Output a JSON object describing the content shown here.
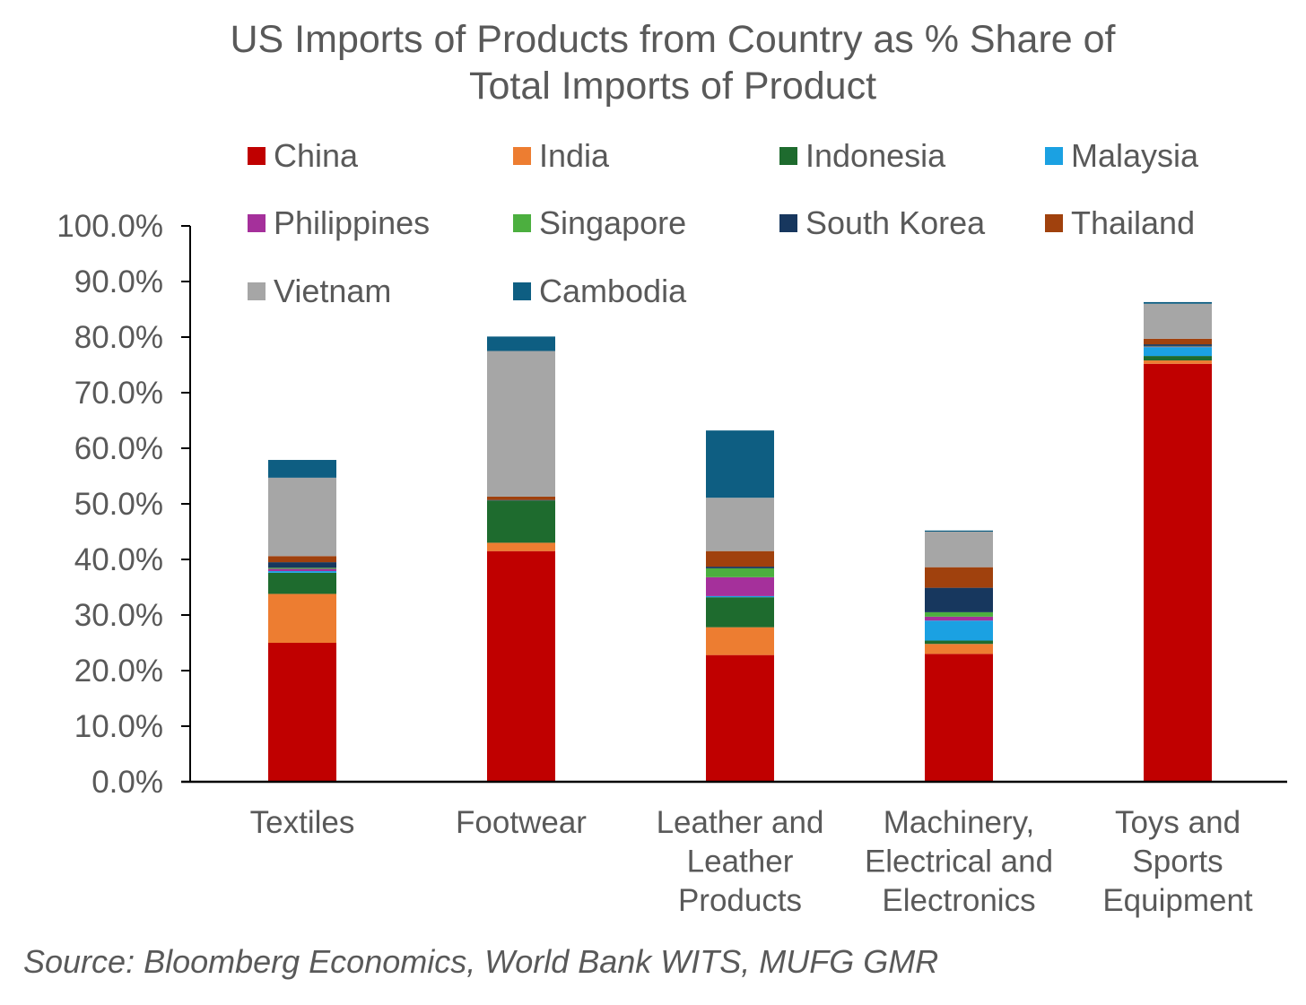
{
  "chart_data": {
    "type": "bar",
    "stacked": true,
    "title": "US Imports of Products from Country as % Share of\nTotal Imports of Product",
    "source": "Source: Bloomberg Economics, World Bank WITS, MUFG GMR",
    "xlabel": "",
    "ylabel": "",
    "ylim": [
      0,
      100
    ],
    "yticks": [
      0,
      10,
      20,
      30,
      40,
      50,
      60,
      70,
      80,
      90,
      100
    ],
    "ytick_labels": [
      "0.0%",
      "10.0%",
      "20.0%",
      "30.0%",
      "40.0%",
      "50.0%",
      "60.0%",
      "70.0%",
      "80.0%",
      "90.0%",
      "100.0%"
    ],
    "grid": false,
    "legend_position": "top",
    "categories": [
      "Textiles",
      "Footwear",
      "Leather and Leather Products",
      "Machinery, Electrical and Electronics",
      "Toys and Sports Equipment"
    ],
    "category_lines": [
      [
        "Textiles"
      ],
      [
        "Footwear"
      ],
      [
        "Leather and",
        "Leather",
        "Products"
      ],
      [
        "Machinery,",
        "Electrical and",
        "Electronics"
      ],
      [
        "Toys and",
        "Sports",
        "Equipment"
      ]
    ],
    "series": [
      {
        "name": "China",
        "color": "#C00000",
        "values": [
          25.0,
          41.5,
          22.8,
          23.0,
          75.2
        ]
      },
      {
        "name": "India",
        "color": "#ED7D31",
        "values": [
          8.8,
          1.5,
          5.0,
          1.8,
          0.6
        ]
      },
      {
        "name": "Indonesia",
        "color": "#1E6B2E",
        "values": [
          3.8,
          7.6,
          5.4,
          0.6,
          0.8
        ]
      },
      {
        "name": "Malaysia",
        "color": "#1BA1E2",
        "values": [
          0.3,
          0.0,
          0.2,
          3.6,
          1.6
        ]
      },
      {
        "name": "Philippines",
        "color": "#A5309B",
        "values": [
          0.4,
          0.0,
          3.4,
          0.7,
          0.1
        ]
      },
      {
        "name": "Singapore",
        "color": "#4CAF3F",
        "values": [
          0.2,
          0.0,
          1.6,
          0.8,
          0.1
        ]
      },
      {
        "name": "South Korea",
        "color": "#17375E",
        "values": [
          1.0,
          0.1,
          0.3,
          4.4,
          0.3
        ]
      },
      {
        "name": "Thailand",
        "color": "#A0410D",
        "values": [
          1.1,
          0.6,
          2.8,
          3.7,
          1.0
        ]
      },
      {
        "name": "Vietnam",
        "color": "#A6A6A6",
        "values": [
          14.1,
          26.2,
          9.6,
          6.4,
          6.3
        ]
      },
      {
        "name": "Cambodia",
        "color": "#0E5E82",
        "values": [
          3.2,
          2.6,
          12.1,
          0.2,
          0.3
        ]
      }
    ]
  }
}
